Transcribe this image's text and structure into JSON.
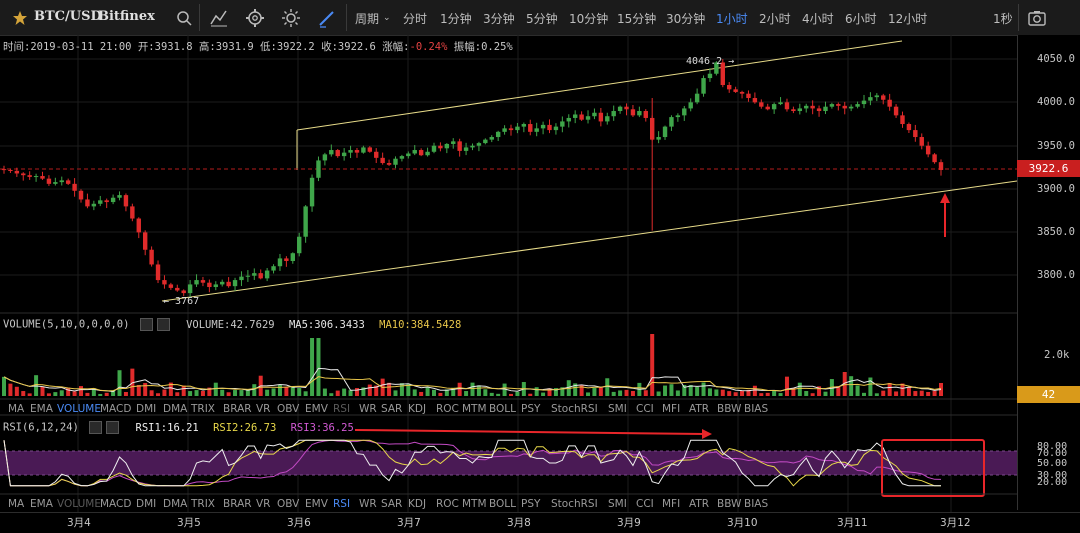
{
  "toolbar": {
    "symbol": "BTC/USD",
    "exchange": "Bitfinex",
    "period_label": "周期",
    "timeframes": [
      "分时",
      "1分钟",
      "3分钟",
      "5分钟",
      "10分钟",
      "15分钟",
      "30分钟",
      "1小时",
      "2小时",
      "4小时",
      "6小时",
      "12小时"
    ],
    "active_timeframe": "1小时",
    "refresh": "1秒",
    "icons": [
      "star-icon",
      "search-icon",
      "indicator-icon",
      "settings-icon",
      "theme-icon",
      "draw-icon",
      "dropdown-icon",
      "camera-icon"
    ]
  },
  "ohlc": {
    "time_label": "时间:",
    "time": "2019-03-11 21:00",
    "open_label": "开:",
    "open": "3931.8",
    "high_label": "高:",
    "high": "3931.9",
    "low_label": "低:",
    "low": "3922.2",
    "close_label": "收:",
    "close": "3922.6",
    "change_label": "涨幅:",
    "change": "-0.24%",
    "amplitude_label": "振幅:",
    "amplitude": "0.25%"
  },
  "price_axis": {
    "labels": [
      "4050.0",
      "4000.0",
      "3950.0",
      "3900.0",
      "3850.0",
      "3800.0"
    ],
    "current_price": "3922.6",
    "volume_labels": [
      "2.0k"
    ],
    "current_volume": "42",
    "rsi_labels": [
      "80.00",
      "70.00",
      "50.00",
      "30.00",
      "20.00"
    ]
  },
  "annotations": {
    "high_marker": "4046.2",
    "low_marker": "3767"
  },
  "volume": {
    "title": "VOLUME(5,10,0,0,0,0)",
    "value": "VOLUME:42.7629",
    "ma5": "MA5:306.3433",
    "ma10": "MA10:384.5428"
  },
  "indicator_tabs": [
    "MA",
    "EMA",
    "VOLUME",
    "MACD",
    "DMI",
    "DMA",
    "TRIX",
    "BRAR",
    "VR",
    "OBV",
    "EMV",
    "RSI",
    "WR",
    "SAR",
    "KDJ",
    "ROC",
    "MTM",
    "BOLL",
    "PSY",
    "StochRSI",
    "SMI",
    "CCI",
    "MFI",
    "ATR",
    "BBW",
    "BIAS"
  ],
  "rsi": {
    "title": "RSI(6,12,24)",
    "rsi1": "RSI1:16.21",
    "rsi2": "RSI2:26.73",
    "rsi3": "RSI3:36.25"
  },
  "dates": [
    "3月4",
    "3月5",
    "3月6",
    "3月7",
    "3月8",
    "3月9",
    "3月10",
    "3月11",
    "3月12"
  ],
  "colors": {
    "up": "#3fa64a",
    "down": "#e02b2b",
    "accent": "#4a8af4",
    "trendline": "#e8dc8a",
    "annotation_red": "#e8262a",
    "rsi_band": "#4a1a55"
  },
  "chart_data": {
    "type": "candlestick",
    "interval": "1h",
    "price_range": [
      3760,
      4065
    ],
    "current_price": 3922.6,
    "high": 4046.2,
    "low": 3767,
    "close_path": [
      3922,
      3921,
      3918,
      3916,
      3914,
      3915,
      3912,
      3906,
      3908,
      3910,
      3906,
      3898,
      3888,
      3880,
      3883,
      3887,
      3885,
      3890,
      3893,
      3880,
      3866,
      3850,
      3830,
      3813,
      3795,
      3790,
      3786,
      3783,
      3780,
      3790,
      3795,
      3792,
      3787,
      3790,
      3793,
      3788,
      3795,
      3799,
      3800,
      3803,
      3797,
      3806,
      3811,
      3820,
      3817,
      3826,
      3845,
      3880,
      3913,
      3933,
      3940,
      3945,
      3938,
      3942,
      3945,
      3942,
      3948,
      3943,
      3936,
      3930,
      3928,
      3935,
      3938,
      3941,
      3945,
      3939,
      3943,
      3950,
      3947,
      3952,
      3955,
      3944,
      3948,
      3950,
      3953,
      3957,
      3960,
      3966,
      3970,
      3968,
      3972,
      3975,
      3966,
      3970,
      3974,
      3968,
      3972,
      3978,
      3982,
      3986,
      3980,
      3984,
      3988,
      3978,
      3984,
      3990,
      3995,
      3992,
      3985,
      3990,
      3982,
      3957,
      3960,
      3972,
      3983,
      3985,
      3993,
      4000,
      4010,
      4028,
      4033,
      4046,
      4020,
      4015,
      4012,
      4010,
      4005,
      4000,
      3995,
      3992,
      3998,
      4000,
      3992,
      3990,
      3993,
      3996,
      3993,
      3990,
      3995,
      3998,
      3996,
      3993,
      3995,
      3998,
      4002,
      4006,
      4008,
      4003,
      3995,
      3985,
      3975,
      3968,
      3960,
      3950,
      3940,
      3931,
      3922
    ],
    "volume_ma5": 306.3433,
    "volume_ma10": 384.5428,
    "volume_current": 42.7629,
    "rsi_levels": [
      80,
      70,
      50,
      30,
      20
    ],
    "rsi_current": {
      "rsi1": 16.21,
      "rsi2": 26.73,
      "rsi3": 36.25
    }
  }
}
